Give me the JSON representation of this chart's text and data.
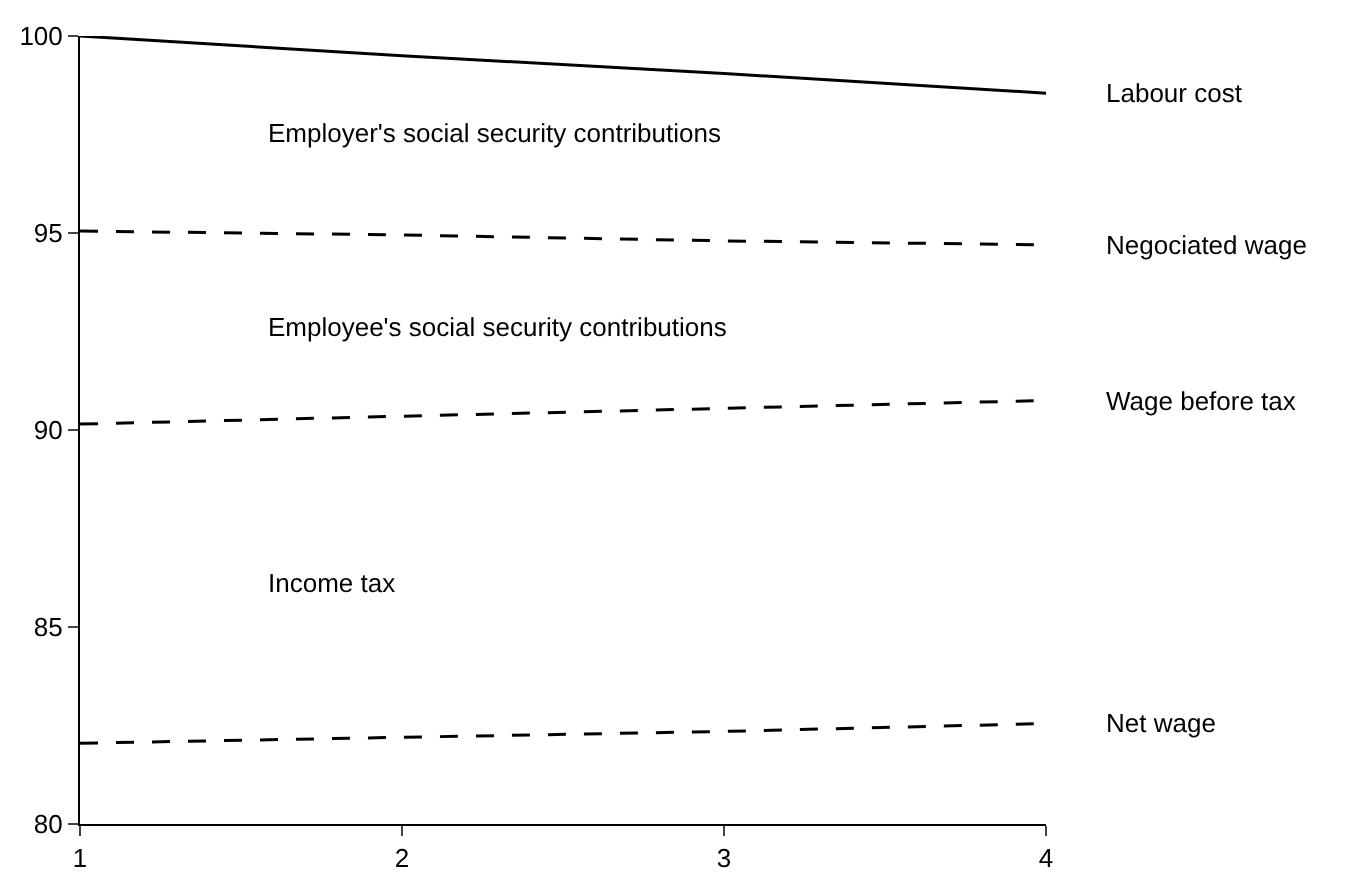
{
  "chart_data": {
    "type": "line",
    "x": [
      1,
      2,
      3,
      4
    ],
    "xlim": [
      1,
      4
    ],
    "xticks": [
      1,
      2,
      3,
      4
    ],
    "ylim": [
      80,
      100
    ],
    "yticks": [
      80,
      85,
      90,
      95,
      100
    ],
    "grid": false,
    "legend": false,
    "marker": "none",
    "series": [
      {
        "name": "Labour cost",
        "color": "#000000",
        "line_style": "solid",
        "values": [
          100,
          99.5,
          99.05,
          98.55
        ]
      },
      {
        "name": "Negociated wage",
        "color": "#000000",
        "line_style": "dashed",
        "values": [
          95.05,
          94.95,
          94.8,
          94.7
        ]
      },
      {
        "name": "Wage before tax",
        "color": "#000000",
        "line_style": "dashed",
        "values": [
          90.15,
          90.35,
          90.55,
          90.75
        ]
      },
      {
        "name": "Net wage",
        "color": "#000000",
        "line_style": "dashed",
        "values": [
          82.05,
          82.2,
          82.35,
          82.55
        ]
      }
    ],
    "annotations": [
      "Employer's social security contributions",
      "Employee's social security contributions",
      "Income tax"
    ]
  }
}
